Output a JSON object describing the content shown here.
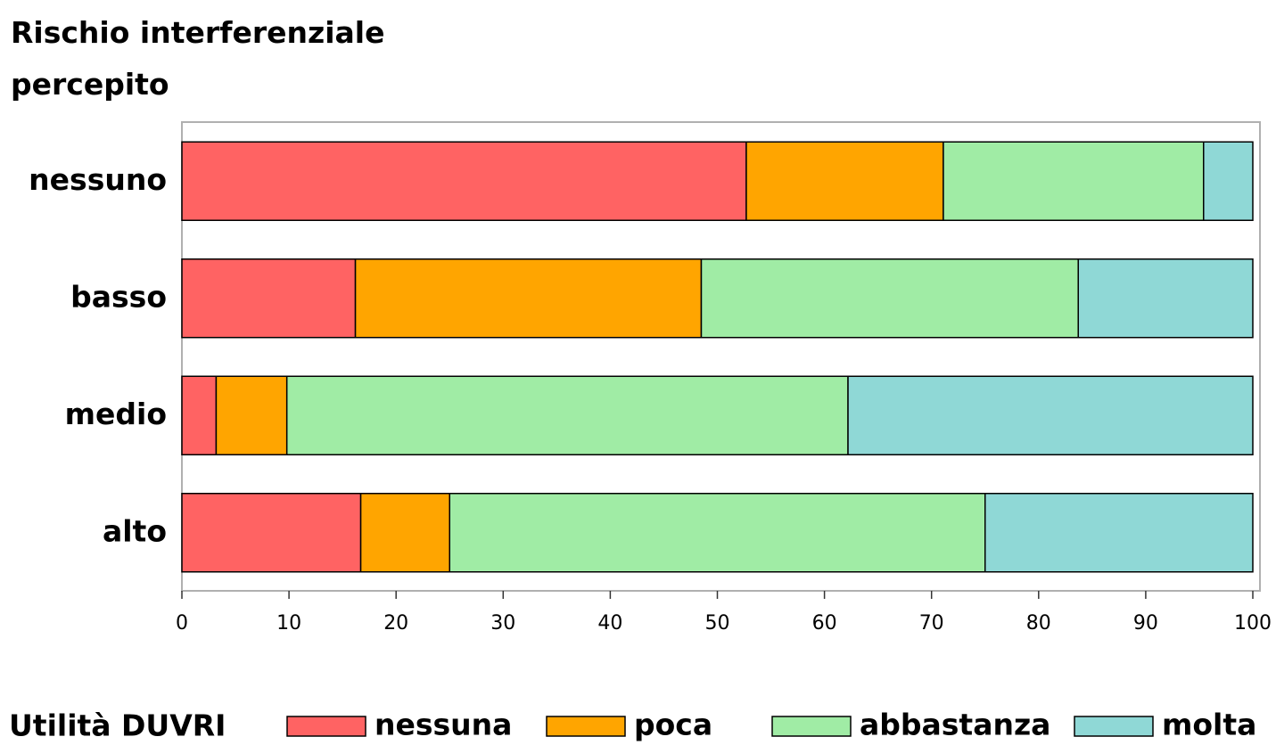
{
  "chart_data": {
    "type": "bar",
    "orientation": "horizontal",
    "stacked": true,
    "ylabel": "Rischio interferenziale percepito",
    "categories": [
      "nessuno",
      "basso",
      "medio",
      "alto"
    ],
    "series": [
      {
        "name": "nessuna",
        "color": "#ff6363",
        "values": [
          52.7,
          16.2,
          3.2,
          16.7
        ]
      },
      {
        "name": "poca",
        "color": "#ffa500",
        "values": [
          18.4,
          32.3,
          6.6,
          8.3
        ]
      },
      {
        "name": "abbastanza",
        "color": "#a0eca5",
        "values": [
          24.3,
          35.2,
          52.4,
          50
        ]
      },
      {
        "name": "molta",
        "color": "#8fd8d6",
        "values": [
          4.6,
          16.3,
          37.8,
          25
        ]
      }
    ],
    "xlim": [
      0,
      100
    ],
    "xticks": [
      0,
      10,
      20,
      30,
      40,
      50,
      60,
      70,
      80,
      90,
      100
    ],
    "legend_title": "Utilità DUVRI",
    "legend_position": "bottom"
  }
}
